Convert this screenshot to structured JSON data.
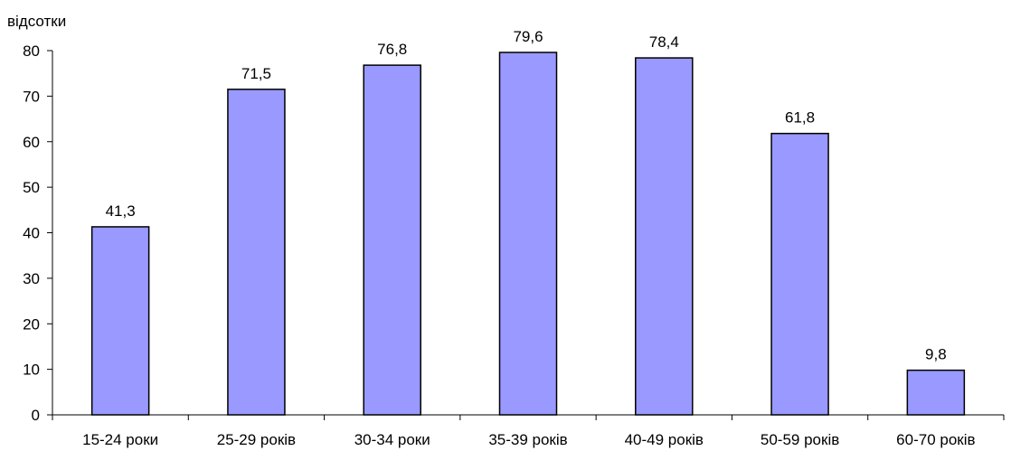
{
  "chart_data": {
    "type": "bar",
    "title": "",
    "xlabel": "",
    "ylabel": "відсотки",
    "categories": [
      "15-24 роки",
      "25-29 років",
      "30-34 роки",
      "35-39 років",
      "40-49 років",
      "50-59 років",
      "60-70 років"
    ],
    "values": [
      41.3,
      71.5,
      76.8,
      79.6,
      78.4,
      61.8,
      9.8
    ],
    "value_labels": [
      "41,3",
      "71,5",
      "76,8",
      "79,6",
      "78,4",
      "61,8",
      "9,8"
    ],
    "ylim": [
      0,
      80
    ],
    "yticks": [
      0,
      10,
      20,
      30,
      40,
      50,
      60,
      70,
      80
    ],
    "grid": false,
    "legend": "none",
    "bar_color": "#9999FF",
    "bar_edge_color": "#000000"
  }
}
